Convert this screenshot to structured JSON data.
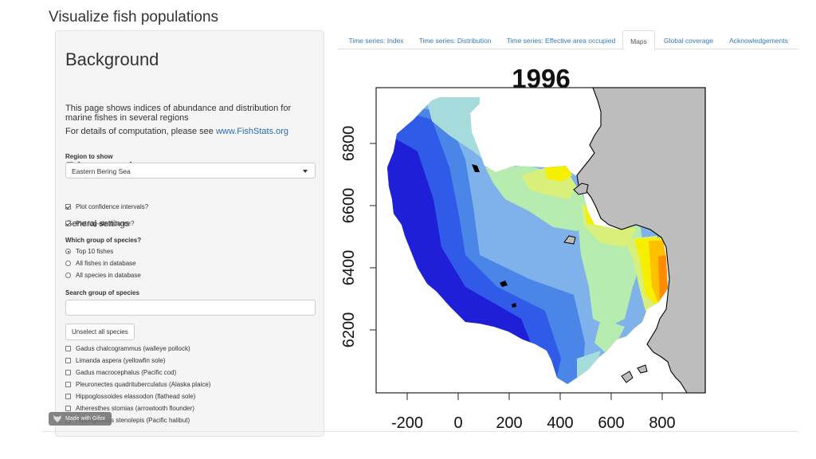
{
  "app": {
    "title": "Visualize fish populations"
  },
  "sidebar": {
    "background": {
      "heading": "Background",
      "description": "This page shows indices of abundance and distribution for marine fishes in several regions",
      "details_prefix": "For details of computation, please see ",
      "details_link": "www.FishStats.org"
    },
    "plot_settings": {
      "heading": "Plot settings",
      "region_label": "Region to show",
      "region_value": "Eastern Bering Sea",
      "general_heading": "General settings",
      "options": [
        {
          "label": "Plot confidence intervals?",
          "checked": true
        },
        {
          "label": "Plot log-abundance?",
          "checked": true
        }
      ],
      "group_label": "Which group of species?",
      "groups": [
        {
          "label": "Top 10 fishes",
          "selected": true
        },
        {
          "label": "All fishes in database",
          "selected": false
        },
        {
          "label": "All species in database",
          "selected": false
        }
      ],
      "search_label": "Search group of species",
      "search_value": "",
      "unselect_label": "Unselect all species",
      "species": [
        {
          "label": "Gadus chalcogrammus (walleye pollock)",
          "checked": false
        },
        {
          "label": "Limanda aspera (yellowfin sole)",
          "checked": false
        },
        {
          "label": "Gadus macrocephalus (Pacific cod)",
          "checked": false
        },
        {
          "label": "Pleuronectes quadrituberculatus (Alaska plaice)",
          "checked": false
        },
        {
          "label": "Hippoglossoides elassodon (flathead sole)",
          "checked": false
        },
        {
          "label": "Atheresthes stomias (arrowtooth flounder)",
          "checked": false
        },
        {
          "label": "Hippoglossus stenolepis (Pacific halibut)",
          "checked": false
        }
      ]
    }
  },
  "watermark": {
    "text": "Made with Gifox"
  },
  "tabs": [
    {
      "label": "Time series: Index",
      "active": false
    },
    {
      "label": "Time series: Distribution",
      "active": false
    },
    {
      "label": "Time series: Effective area occupied",
      "active": false
    },
    {
      "label": "Maps",
      "active": true
    },
    {
      "label": "Global coverage",
      "active": false
    },
    {
      "label": "Acknowledgements",
      "active": false
    }
  ],
  "map": {
    "title": "1996",
    "y_ticks": [
      "6200",
      "6400",
      "6600",
      "6800"
    ],
    "x_ticks": [
      "-200",
      "0",
      "200",
      "400",
      "600",
      "800"
    ],
    "land_color": "#bdbdbd",
    "palette": [
      "#1f1fd8",
      "#2f5be8",
      "#4a86e8",
      "#7fb2ea",
      "#a6dcdc",
      "#b6ecb0",
      "#d8f07a",
      "#f6f000",
      "#ffc000",
      "#ff8c00"
    ]
  }
}
